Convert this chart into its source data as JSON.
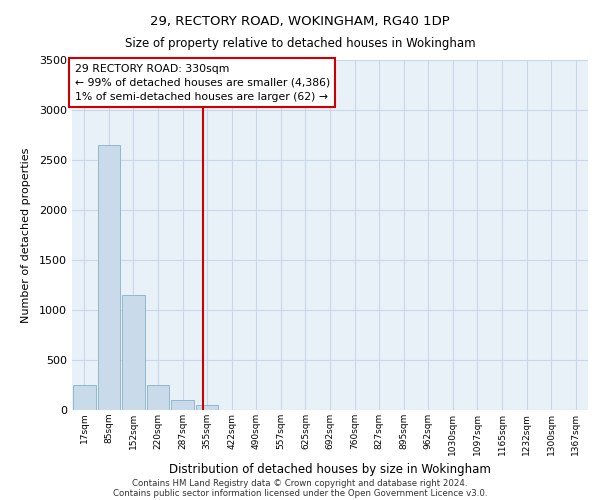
{
  "title1": "29, RECTORY ROAD, WOKINGHAM, RG40 1DP",
  "title2": "Size of property relative to detached houses in Wokingham",
  "xlabel": "Distribution of detached houses by size in Wokingham",
  "ylabel": "Number of detached properties",
  "bin_labels": [
    "17sqm",
    "85sqm",
    "152sqm",
    "220sqm",
    "287sqm",
    "355sqm",
    "422sqm",
    "490sqm",
    "557sqm",
    "625sqm",
    "692sqm",
    "760sqm",
    "827sqm",
    "895sqm",
    "962sqm",
    "1030sqm",
    "1097sqm",
    "1165sqm",
    "1232sqm",
    "1300sqm",
    "1367sqm"
  ],
  "bar_heights": [
    250,
    2650,
    1150,
    255,
    105,
    50,
    2,
    0,
    0,
    0,
    0,
    0,
    0,
    0,
    0,
    0,
    0,
    0,
    0,
    0,
    0
  ],
  "bar_color": "#c9daea",
  "bar_edge_color": "#90b8d0",
  "grid_color": "#c8d8ea",
  "background_color": "#e8f0f8",
  "property_line_x": 4.85,
  "property_line_color": "#cc0000",
  "annotation_text_line1": "29 RECTORY ROAD: 330sqm",
  "annotation_text_line2": "← 99% of detached houses are smaller (4,386)",
  "annotation_text_line3": "1% of semi-detached houses are larger (62) →",
  "annotation_box_color": "#cc0000",
  "ylim": [
    0,
    3500
  ],
  "yticks": [
    0,
    500,
    1000,
    1500,
    2000,
    2500,
    3000,
    3500
  ],
  "footer1": "Contains HM Land Registry data © Crown copyright and database right 2024.",
  "footer2": "Contains public sector information licensed under the Open Government Licence v3.0."
}
